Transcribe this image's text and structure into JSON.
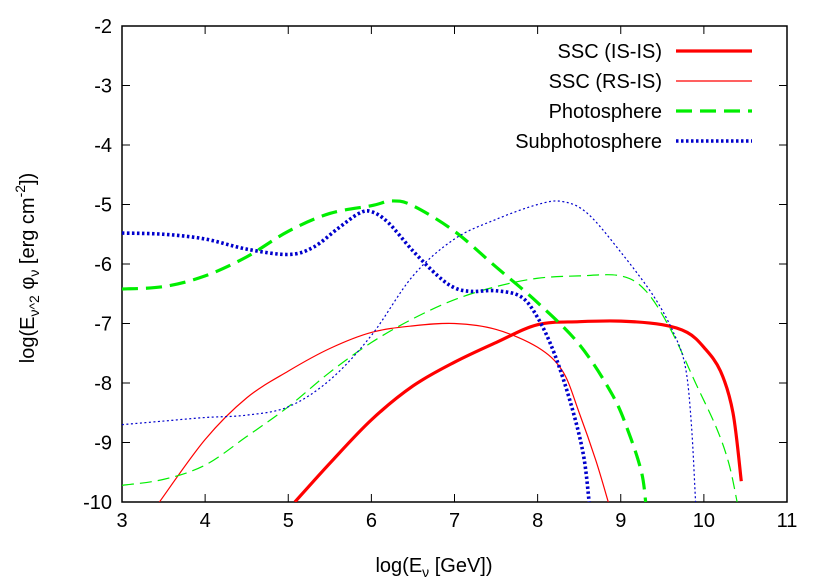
{
  "chart_data": {
    "type": "line",
    "title": "",
    "xlabel": "log(E_ν [GeV])",
    "ylabel": "log(E_ν^2 φ_ν [erg cm^-2])",
    "xlim": [
      3,
      11
    ],
    "ylim": [
      -10,
      -2
    ],
    "x_ticks": [
      3,
      4,
      5,
      6,
      7,
      8,
      9,
      10,
      11
    ],
    "y_ticks": [
      -10,
      -9,
      -8,
      -7,
      -6,
      -5,
      -4,
      -3,
      -2
    ],
    "grid": false,
    "legend_position": "top-right",
    "series": [
      {
        "name": "SSC (IS-IS)",
        "color": "#ff0000",
        "style": "solid-thick",
        "in_legend": true,
        "points": [
          [
            5.08,
            -10.0
          ],
          [
            5.5,
            -9.35
          ],
          [
            6.0,
            -8.62
          ],
          [
            6.5,
            -8.05
          ],
          [
            7.0,
            -7.65
          ],
          [
            7.5,
            -7.32
          ],
          [
            8.0,
            -7.02
          ],
          [
            8.5,
            -6.97
          ],
          [
            9.0,
            -6.96
          ],
          [
            9.5,
            -7.02
          ],
          [
            9.8,
            -7.15
          ],
          [
            10.0,
            -7.4
          ],
          [
            10.2,
            -7.8
          ],
          [
            10.35,
            -8.5
          ],
          [
            10.45,
            -9.65
          ]
        ]
      },
      {
        "name": "SSC (RS-IS)",
        "color": "#ff0000",
        "style": "solid-thin",
        "in_legend": true,
        "points": [
          [
            3.45,
            -10.0
          ],
          [
            4.0,
            -8.95
          ],
          [
            4.5,
            -8.25
          ],
          [
            5.0,
            -7.8
          ],
          [
            5.5,
            -7.42
          ],
          [
            6.0,
            -7.15
          ],
          [
            6.5,
            -7.04
          ],
          [
            7.0,
            -7.0
          ],
          [
            7.5,
            -7.1
          ],
          [
            8.0,
            -7.4
          ],
          [
            8.3,
            -7.8
          ],
          [
            8.5,
            -8.5
          ],
          [
            8.7,
            -9.3
          ],
          [
            8.85,
            -10.0
          ]
        ]
      },
      {
        "name": "Photosphere",
        "color": "#00ee00",
        "style": "dashed-thick",
        "in_legend": true,
        "points": [
          [
            3.0,
            -6.42
          ],
          [
            3.5,
            -6.38
          ],
          [
            4.0,
            -6.2
          ],
          [
            4.5,
            -5.88
          ],
          [
            5.0,
            -5.45
          ],
          [
            5.5,
            -5.15
          ],
          [
            6.0,
            -5.02
          ],
          [
            6.25,
            -4.94
          ],
          [
            6.5,
            -5.02
          ],
          [
            7.0,
            -5.45
          ],
          [
            7.5,
            -6.05
          ],
          [
            8.0,
            -6.65
          ],
          [
            8.5,
            -7.35
          ],
          [
            8.9,
            -8.2
          ],
          [
            9.1,
            -8.85
          ],
          [
            9.25,
            -9.5
          ],
          [
            9.3,
            -10.0
          ]
        ]
      },
      {
        "name": "Photosphere (thin)",
        "color": "#00ee00",
        "style": "dashed-thin",
        "in_legend": false,
        "points": [
          [
            3.0,
            -9.72
          ],
          [
            3.5,
            -9.62
          ],
          [
            4.0,
            -9.38
          ],
          [
            4.5,
            -8.9
          ],
          [
            5.0,
            -8.4
          ],
          [
            5.5,
            -7.82
          ],
          [
            6.0,
            -7.32
          ],
          [
            6.5,
            -6.92
          ],
          [
            7.0,
            -6.6
          ],
          [
            7.5,
            -6.38
          ],
          [
            8.0,
            -6.24
          ],
          [
            8.5,
            -6.2
          ],
          [
            9.0,
            -6.2
          ],
          [
            9.3,
            -6.45
          ],
          [
            9.6,
            -7.1
          ],
          [
            9.9,
            -8.0
          ],
          [
            10.15,
            -8.75
          ],
          [
            10.3,
            -9.35
          ],
          [
            10.4,
            -10.0
          ]
        ]
      },
      {
        "name": "Subphotosphere",
        "color": "#0000cc",
        "style": "dotted-thick",
        "in_legend": true,
        "points": [
          [
            3.0,
            -5.48
          ],
          [
            3.5,
            -5.5
          ],
          [
            4.0,
            -5.58
          ],
          [
            4.5,
            -5.75
          ],
          [
            5.0,
            -5.84
          ],
          [
            5.3,
            -5.72
          ],
          [
            5.6,
            -5.4
          ],
          [
            5.85,
            -5.15
          ],
          [
            6.0,
            -5.12
          ],
          [
            6.2,
            -5.3
          ],
          [
            6.5,
            -5.78
          ],
          [
            6.8,
            -6.2
          ],
          [
            7.0,
            -6.4
          ],
          [
            7.2,
            -6.46
          ],
          [
            7.5,
            -6.45
          ],
          [
            7.8,
            -6.55
          ],
          [
            8.0,
            -6.9
          ],
          [
            8.2,
            -7.5
          ],
          [
            8.4,
            -8.35
          ],
          [
            8.55,
            -9.2
          ],
          [
            8.62,
            -10.0
          ]
        ]
      },
      {
        "name": "Subphotosphere (thin)",
        "color": "#0000cc",
        "style": "dotted-thin",
        "in_legend": false,
        "points": [
          [
            3.0,
            -8.7
          ],
          [
            3.5,
            -8.64
          ],
          [
            4.0,
            -8.58
          ],
          [
            4.5,
            -8.54
          ],
          [
            5.0,
            -8.4
          ],
          [
            5.5,
            -7.95
          ],
          [
            6.0,
            -7.2
          ],
          [
            6.5,
            -6.2
          ],
          [
            7.0,
            -5.58
          ],
          [
            7.5,
            -5.25
          ],
          [
            8.0,
            -5.0
          ],
          [
            8.3,
            -4.95
          ],
          [
            8.6,
            -5.15
          ],
          [
            9.0,
            -5.8
          ],
          [
            9.4,
            -6.55
          ],
          [
            9.65,
            -7.2
          ],
          [
            9.78,
            -7.75
          ],
          [
            9.85,
            -8.7
          ],
          [
            9.9,
            -10.0
          ]
        ]
      }
    ]
  }
}
